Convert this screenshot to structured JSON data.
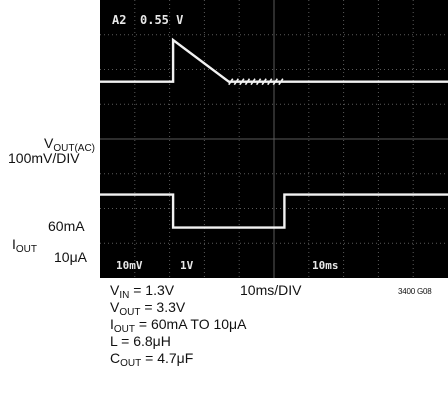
{
  "chart_data": {
    "type": "line",
    "title": "",
    "screen": {
      "cursor_readout": {
        "channel": "A2",
        "value": "0.55 V"
      },
      "ch1_scale": "10mV",
      "ch2_scale": "1V",
      "timebase": "10ms"
    },
    "xlim": [
      0,
      100
    ],
    "ylim": [
      -4,
      4
    ],
    "series": [
      {
        "name": "",
        "points": [
          [
            0,
            1.65
          ],
          [
            21,
            1.65
          ],
          [
            21,
            2.85
          ],
          [
            37,
            1.65
          ],
          [
            100,
            1.65
          ]
        ],
        "ripple": {
          "x": [
            37,
            53
          ]
        }
      },
      {
        "name": "",
        "points": [
          [
            0,
            -1.6
          ],
          [
            21,
            -1.6
          ],
          [
            21,
            -2.55
          ],
          [
            53,
            -2.55
          ],
          [
            53,
            -1.6
          ],
          [
            100,
            -1.6
          ]
        ]
      }
    ],
    "axis_labels": {
      "vout_line1": "V",
      "vout_sub": "OUT(AC)",
      "vout_line2": "100mV/DIV",
      "iout_high": "60mA",
      "iout_name": "I",
      "iout_sub": "OUT",
      "iout_low": "10μA"
    },
    "conditions": [
      {
        "pre": "V",
        "sub": "IN",
        "post": " = 1.3V"
      },
      {
        "pre": "V",
        "sub": "OUT",
        "post": " = 3.3V"
      },
      {
        "pre": "I",
        "sub": "OUT",
        "post": " = 60mA TO 10μA"
      },
      {
        "pre": "L = 6.8μH",
        "sub": "",
        "post": ""
      },
      {
        "pre": "C",
        "sub": "OUT",
        "post": " = 4.7μF"
      }
    ],
    "xlabel": "10ms/DIV",
    "figure_id": "3400 G08"
  }
}
